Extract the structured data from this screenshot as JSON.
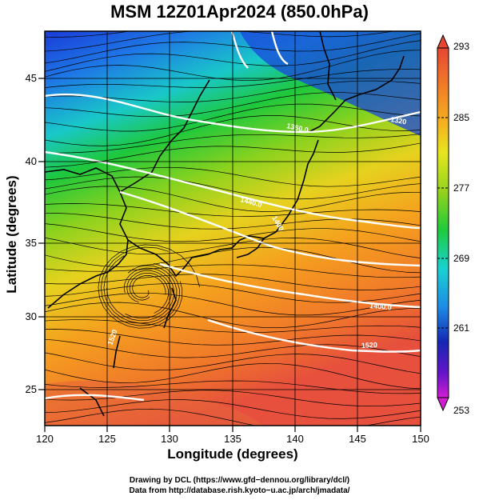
{
  "title": "MSM 12Z01Apr2024 (850.0hPa)",
  "xlabel": "Longitude (degrees)",
  "ylabel": "Latitude  (degrees)",
  "x_ticks": [
    "120",
    "125",
    "130",
    "135",
    "140",
    "145",
    "150"
  ],
  "y_ticks": [
    "25",
    "30",
    "35",
    "40",
    "45"
  ],
  "colorbar_ticks": [
    "293",
    "285",
    "277",
    "269",
    "261",
    "253"
  ],
  "contour_labels": [
    "1360.0",
    "1320",
    "1440.0",
    "1400",
    "1400.0",
    "1520",
    "1520"
  ],
  "credits": {
    "line1": "Drawing by DCL (https://www.gfd−dennou.org/library/dcl/)",
    "line2": "Data from http://database.rish.kyoto−u.ac.jp/arch/jmadata/"
  },
  "map": {
    "lon_range": [
      120,
      150
    ],
    "lat_range": [
      22.6,
      48
    ],
    "vortex_center": {
      "lon": 128,
      "lat": 31.5
    }
  },
  "colorbar": {
    "range": [
      253,
      293
    ],
    "colors": [
      "#c21ed2",
      "#6a16c8",
      "#1414b4",
      "#1050e0",
      "#1e9be6",
      "#19d2d2",
      "#14c8a0",
      "#1ecc3c",
      "#6ed21e",
      "#c2e014",
      "#f0d21e",
      "#f5a01e",
      "#f06e1e",
      "#e63c1e",
      "#e6503c"
    ]
  }
}
